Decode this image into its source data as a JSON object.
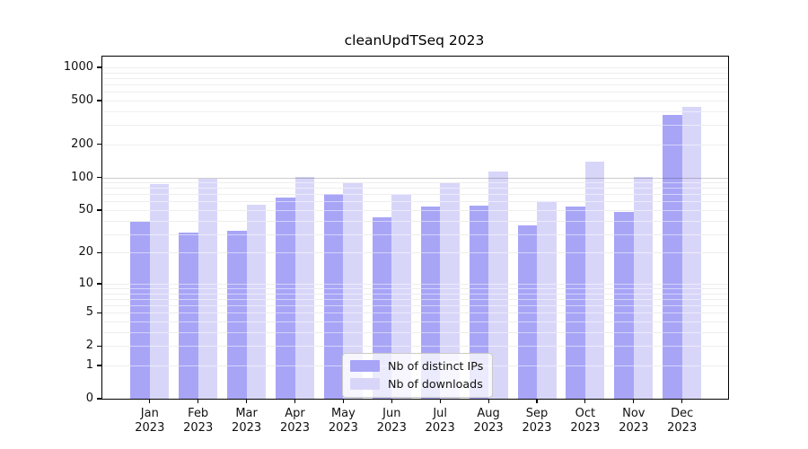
{
  "chart_data": {
    "type": "bar",
    "title": "cleanUpdTSeq 2023",
    "xlabel": "",
    "ylabel": "",
    "scale": "log1p",
    "ylim": [
      0,
      1250
    ],
    "grid": true,
    "legend_position": "bottom-center-inside",
    "categories": [
      "Jan",
      "Feb",
      "Mar",
      "Apr",
      "May",
      "Jun",
      "Jul",
      "Aug",
      "Sep",
      "Oct",
      "Nov",
      "Dec"
    ],
    "year_label": "2023",
    "series": [
      {
        "name": "Nb of distinct IPs",
        "color": "#a8a5f7",
        "values": [
          39,
          31,
          32,
          65,
          71,
          43,
          54,
          55,
          36,
          54,
          48,
          370
        ]
      },
      {
        "name": "Nb of downloads",
        "color": "#d8d6f8",
        "values": [
          87,
          98,
          56,
          101,
          89,
          70,
          88,
          113,
          61,
          139,
          101,
          438
        ]
      }
    ],
    "yticks": [
      0,
      1,
      2,
      5,
      10,
      20,
      50,
      100,
      200,
      500,
      1000
    ],
    "gridlines": {
      "minor": [
        1,
        2,
        3,
        4,
        5,
        6,
        7,
        8,
        9,
        10,
        20,
        30,
        40,
        50,
        60,
        70,
        80,
        90,
        200,
        300,
        400,
        500,
        600,
        700,
        800,
        900,
        1000
      ],
      "emphasis": 100
    },
    "colors": {
      "axis": "#000000",
      "minor_grid": "#ececec",
      "emphasis_grid": "#c8c8c8"
    }
  }
}
